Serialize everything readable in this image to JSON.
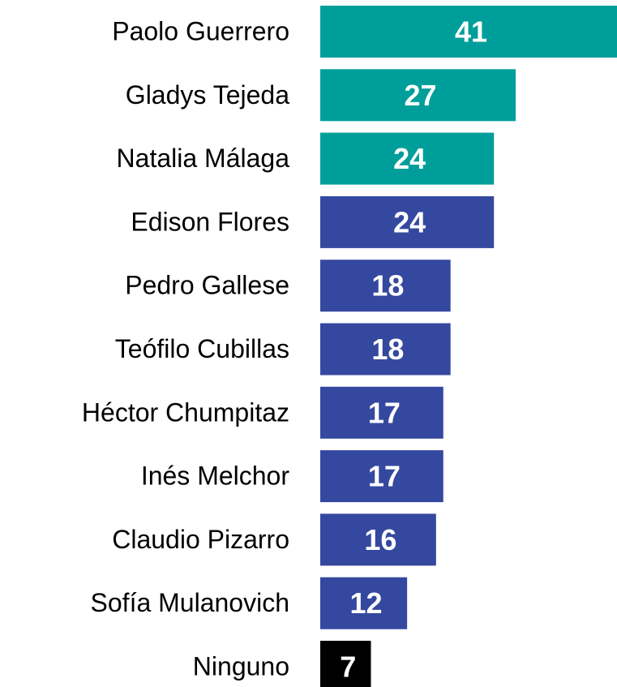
{
  "chart_data": {
    "type": "bar",
    "orientation": "horizontal",
    "categories": [
      "Paolo Guerrero",
      "Gladys Tejeda",
      "Natalia Málaga",
      "Edison Flores",
      "Pedro Gallese",
      "Teófilo Cubillas",
      "Héctor Chumpitaz",
      "Inés Melchor",
      "Claudio Pizarro",
      "Sofía Mulanovich",
      "Ninguno"
    ],
    "values": [
      41,
      27,
      24,
      24,
      18,
      18,
      17,
      17,
      16,
      12,
      7
    ],
    "colors": [
      "#009e9a",
      "#009e9a",
      "#009e9a",
      "#3548a0",
      "#3548a0",
      "#3548a0",
      "#3548a0",
      "#3548a0",
      "#3548a0",
      "#3548a0",
      "#000000"
    ]
  }
}
